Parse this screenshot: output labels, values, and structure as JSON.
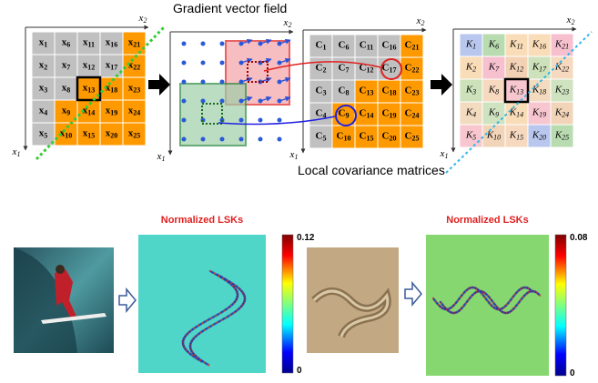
{
  "top": {
    "title": "Gradient vector field",
    "caption": "Local covariance matrices",
    "axes": {
      "symbol": "x",
      "horizontal": 2,
      "vertical": 1
    },
    "grids": [
      {
        "symbol": "x",
        "cells": [
          1,
          6,
          11,
          16,
          21,
          2,
          7,
          12,
          17,
          22,
          3,
          8,
          13,
          18,
          23,
          4,
          9,
          14,
          19,
          24,
          5,
          10,
          15,
          20,
          25
        ]
      },
      {
        "symbol": "C",
        "cells": [
          1,
          6,
          11,
          16,
          21,
          2,
          7,
          12,
          17,
          22,
          3,
          8,
          13,
          18,
          23,
          4,
          9,
          14,
          19,
          24,
          5,
          10,
          15,
          20,
          25
        ]
      },
      {
        "symbol": "K",
        "cells": [
          1,
          6,
          11,
          16,
          21,
          2,
          7,
          12,
          17,
          22,
          3,
          8,
          13,
          18,
          23,
          4,
          9,
          14,
          19,
          24,
          5,
          10,
          15,
          20,
          25
        ]
      }
    ]
  },
  "bottom": {
    "panels": [
      {
        "title": "Normalized LSKs",
        "colorbar": {
          "max": 0.12,
          "min": 0
        }
      },
      {
        "title": "Normalized LSKs",
        "colorbar": {
          "max": 0.08,
          "min": 0
        }
      }
    ]
  }
}
